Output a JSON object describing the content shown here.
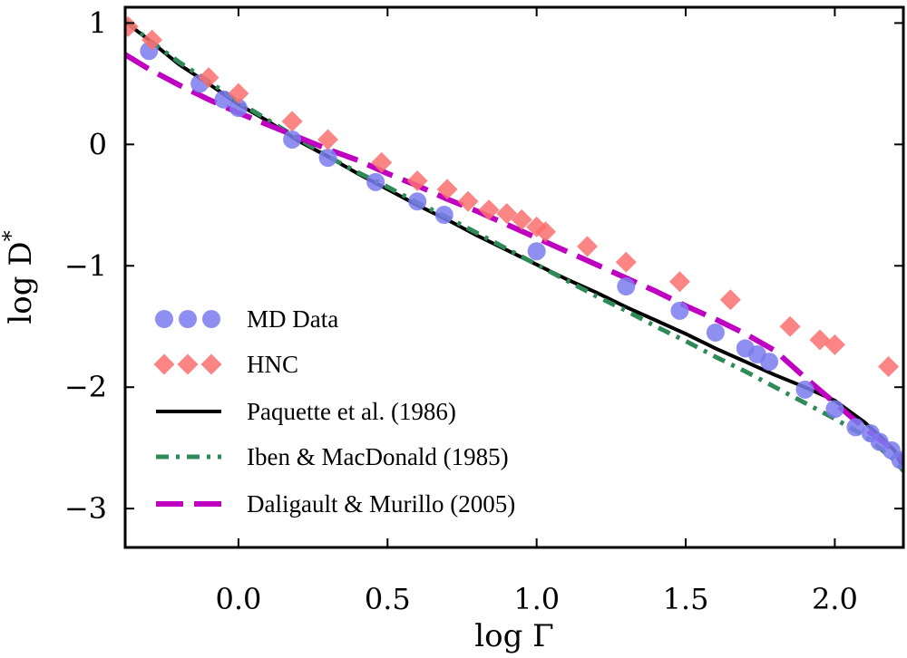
{
  "chart_data": {
    "type": "scatter",
    "title": "",
    "xlabel": "log Γ",
    "ylabel_main": "log D",
    "ylabel_sup": "*",
    "xlim": [
      -0.38,
      2.23
    ],
    "ylim": [
      -3.32,
      1.13
    ],
    "xticks": [
      0.0,
      0.5,
      1.0,
      1.5,
      2.0
    ],
    "xtick_labels": [
      "0.0",
      "0.5",
      "1.0",
      "1.5",
      "2.0"
    ],
    "yticks": [
      1,
      0,
      -1,
      -2,
      -3
    ],
    "ytick_labels": [
      "1",
      "0",
      "−1",
      "−2",
      "−3"
    ],
    "grid": false,
    "legend_position": "lower-left",
    "colors": {
      "md": "#7b7bef",
      "hnc": "#fa6e6e",
      "paquette": "#000000",
      "iben": "#2e8b57",
      "daligault": "#c000c0"
    },
    "series": [
      {
        "name": "MD Data",
        "kind": "scatter",
        "marker": "circle",
        "x": [
          -0.3,
          -0.13,
          -0.05,
          0.0,
          0.18,
          0.3,
          0.46,
          0.6,
          0.69,
          1.0,
          1.3,
          1.48,
          1.6,
          1.7,
          1.74,
          1.78,
          1.9,
          2.0,
          2.07,
          2.12,
          2.15,
          2.19,
          2.22
        ],
        "y": [
          0.77,
          0.5,
          0.37,
          0.3,
          0.04,
          -0.11,
          -0.31,
          -0.47,
          -0.58,
          -0.88,
          -1.17,
          -1.37,
          -1.55,
          -1.68,
          -1.73,
          -1.79,
          -2.02,
          -2.18,
          -2.33,
          -2.38,
          -2.45,
          -2.52,
          -2.6
        ]
      },
      {
        "name": "HNC",
        "kind": "scatter",
        "marker": "diamond",
        "x": [
          -0.37,
          -0.29,
          -0.1,
          0.0,
          0.18,
          0.3,
          0.48,
          0.6,
          0.7,
          0.77,
          0.84,
          0.9,
          0.95,
          1.0,
          1.03,
          1.17,
          1.3,
          1.48,
          1.65,
          1.85,
          1.95,
          2.0,
          2.18
        ],
        "y": [
          0.97,
          0.86,
          0.55,
          0.42,
          0.19,
          0.04,
          -0.15,
          -0.3,
          -0.37,
          -0.47,
          -0.54,
          -0.57,
          -0.62,
          -0.68,
          -0.72,
          -0.84,
          -0.97,
          -1.13,
          -1.28,
          -1.5,
          -1.61,
          -1.65,
          -1.83
        ]
      },
      {
        "name": "Paquette et al. (1986)",
        "kind": "line",
        "dash": "solid",
        "x": [
          -0.38,
          -0.3,
          -0.2,
          -0.1,
          0.0,
          0.1,
          0.2,
          0.3,
          0.4,
          0.5,
          0.6,
          0.7,
          0.8,
          0.9,
          1.0,
          1.1,
          1.2,
          1.3,
          1.4,
          1.5,
          1.6,
          1.7,
          1.8,
          1.9,
          2.0,
          2.05,
          2.1,
          2.15,
          2.2,
          2.23
        ],
        "y": [
          1.01,
          0.86,
          0.66,
          0.5,
          0.33,
          0.19,
          0.03,
          -0.1,
          -0.24,
          -0.37,
          -0.5,
          -0.62,
          -0.75,
          -0.87,
          -0.99,
          -1.11,
          -1.22,
          -1.34,
          -1.45,
          -1.56,
          -1.68,
          -1.79,
          -1.9,
          -2.0,
          -2.11,
          -2.2,
          -2.29,
          -2.4,
          -2.52,
          -2.67
        ]
      },
      {
        "name": "Iben & MacDonald (1985)",
        "kind": "line",
        "dash": "dashdot",
        "x": [
          -0.38,
          -0.3,
          -0.2,
          -0.1,
          0.0,
          0.1,
          0.2,
          0.3,
          0.4,
          0.5,
          0.6,
          0.7,
          0.8,
          0.9,
          1.0,
          1.1,
          1.2,
          1.3,
          1.4,
          1.5,
          1.6,
          1.7,
          1.8,
          1.9,
          2.0,
          2.1,
          2.2,
          2.23
        ],
        "y": [
          1.02,
          0.86,
          0.68,
          0.52,
          0.35,
          0.2,
          0.05,
          -0.1,
          -0.23,
          -0.35,
          -0.48,
          -0.6,
          -0.73,
          -0.86,
          -0.99,
          -1.12,
          -1.25,
          -1.37,
          -1.5,
          -1.62,
          -1.75,
          -1.87,
          -2.0,
          -2.13,
          -2.26,
          -2.4,
          -2.6,
          -2.69
        ]
      },
      {
        "name": "Daligault & Murillo (2005)",
        "kind": "line",
        "dash": "longdash",
        "x": [
          -0.38,
          -0.3,
          -0.2,
          -0.1,
          0.0,
          0.1,
          0.2,
          0.3,
          0.4,
          0.5,
          0.6,
          0.7,
          0.8,
          0.9,
          1.0,
          1.1,
          1.2,
          1.3,
          1.4,
          1.5,
          1.6,
          1.7,
          1.8,
          1.9,
          2.0,
          2.1,
          2.2,
          2.23
        ],
        "y": [
          0.74,
          0.62,
          0.49,
          0.37,
          0.26,
          0.16,
          0.06,
          -0.04,
          -0.13,
          -0.24,
          -0.34,
          -0.45,
          -0.55,
          -0.66,
          -0.77,
          -0.88,
          -0.99,
          -1.1,
          -1.21,
          -1.33,
          -1.44,
          -1.56,
          -1.7,
          -1.92,
          -2.13,
          -2.34,
          -2.52,
          -2.6
        ]
      }
    ]
  }
}
